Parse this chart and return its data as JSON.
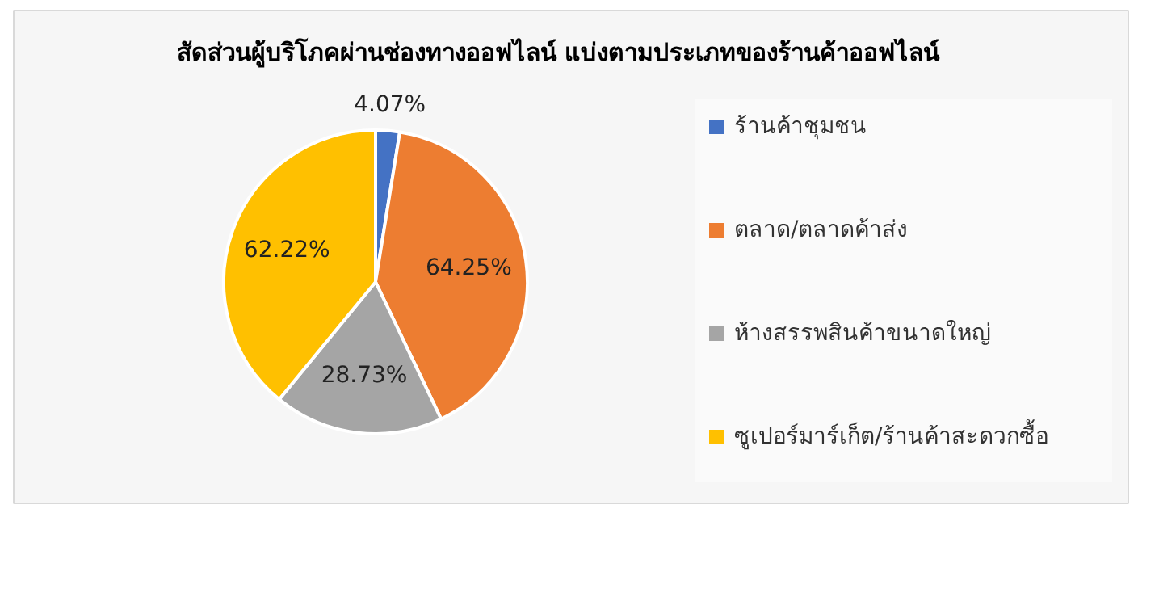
{
  "chart_data": {
    "type": "pie",
    "title": "สัดส่วนผู้บริโภคผ่านช่องทางออฟไลน์ แบ่งตามประเภทของร้านค้าออฟไลน์",
    "categories": [
      "ร้านค้าชุมชน",
      "ตลาด/ตลาดค้าส่ง",
      "ห้างสรรพสินค้าขนาดใหญ่",
      "ซูเปอร์มาร์เก็ต/ร้านค้าสะดวกซื้อ"
    ],
    "values": [
      4.07,
      64.25,
      28.73,
      62.22
    ],
    "colors": [
      "#4472c4",
      "#ed7d31",
      "#a5a5a5",
      "#ffc000"
    ],
    "value_labels": [
      "4.07%",
      "64.25%",
      "28.73%",
      "62.22%"
    ],
    "legend": "right"
  }
}
